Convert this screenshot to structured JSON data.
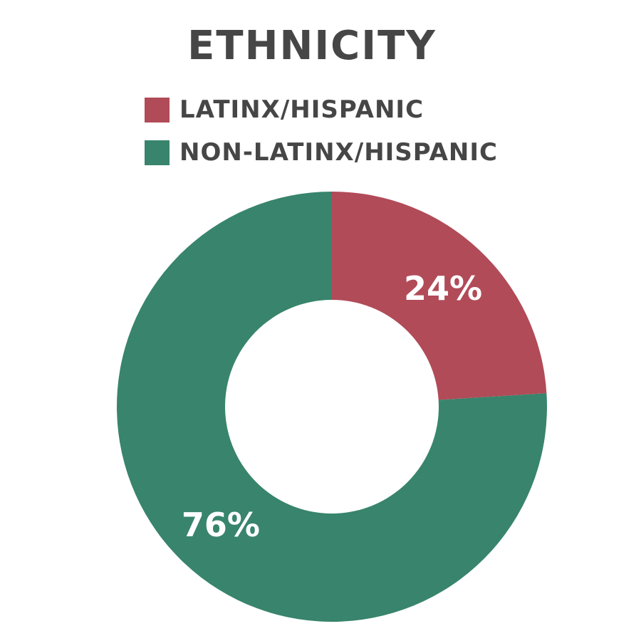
{
  "chart_data": {
    "type": "pie",
    "title": "ETHNICITY",
    "categories": [
      "LATINX/HISPANIC",
      "NON-LATINX/HISPANIC"
    ],
    "values": [
      24,
      76
    ],
    "labels": [
      "24%",
      "76%"
    ],
    "colors": [
      "#B14B58",
      "#38846C"
    ],
    "donut": true,
    "legend": "top"
  }
}
